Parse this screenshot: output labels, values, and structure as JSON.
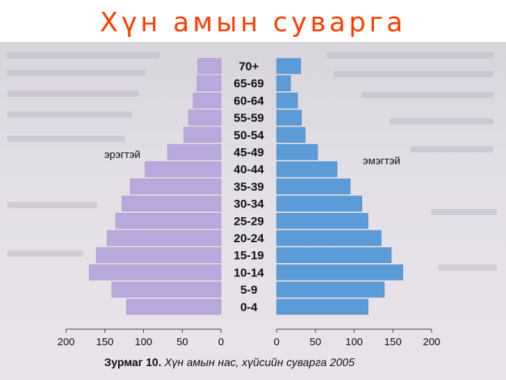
{
  "slide": {
    "title": "Хүн амын суварга"
  },
  "chart_data": {
    "type": "bar",
    "orientation": "horizontal-pyramid",
    "categories": [
      "0-4",
      "5-9",
      "10-14",
      "15-19",
      "20-24",
      "25-29",
      "30-34",
      "35-39",
      "40-44",
      "45-49",
      "50-54",
      "55-59",
      "60-64",
      "65-69",
      "70+"
    ],
    "series": [
      {
        "name": "эрэгтэй",
        "side": "left",
        "color": "#b8a8dc",
        "values": [
          122,
          141,
          170,
          161,
          147,
          136,
          128,
          117,
          98,
          69,
          48,
          42,
          36,
          31,
          30
        ]
      },
      {
        "name": "эмэгтэй",
        "side": "right",
        "color": "#5b9bd8",
        "values": [
          118,
          139,
          163,
          148,
          135,
          118,
          110,
          95,
          78,
          53,
          37,
          32,
          27,
          18,
          31
        ]
      }
    ],
    "xlim": [
      0,
      200
    ],
    "ticks": [
      "200",
      "150",
      "100",
      "50",
      "0",
      "0",
      "50",
      "100",
      "150",
      "200"
    ],
    "caption": {
      "figure": "Зурмаг 10.",
      "text": "Хүн амын нас, хүйсийн суварга 2005"
    },
    "grid": false,
    "legend": "inline labels beside bars"
  }
}
